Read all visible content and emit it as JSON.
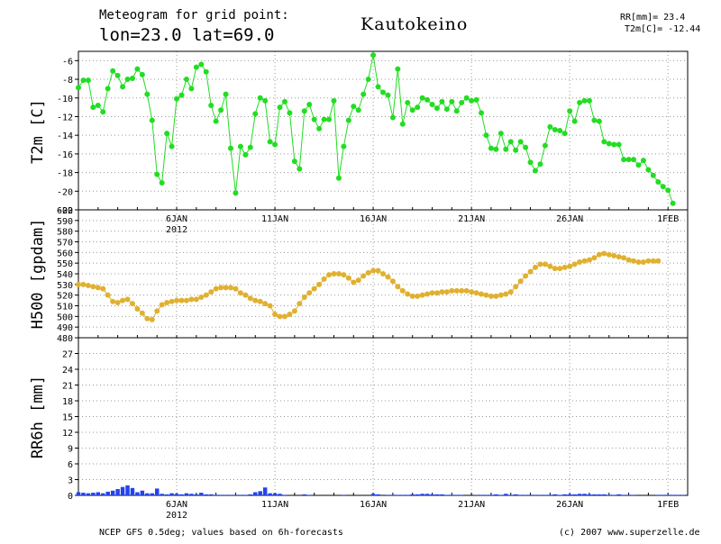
{
  "header": {
    "line1": "Meteogram for grid point:",
    "line2": "lon=23.0 lat=69.0",
    "station": "Kautokeino",
    "rr_label": "RR[mm]= 23.4",
    "t2m_label": "T2m[C]= -12.44"
  },
  "footer": {
    "source": "NCEP GFS 0.5deg; values based on 6h-forecasts",
    "credit": "(c) 2007 www.superzelle.de"
  },
  "colors": {
    "t2m": "#22dd22",
    "h500": "#e0b030",
    "rr": "#2244ee",
    "grid": "#999999",
    "axis": "#000000"
  },
  "x_ticks": [
    "6JAN",
    "11JAN",
    "16JAN",
    "21JAN",
    "26JAN",
    "1FEB"
  ],
  "x_year": "2012",
  "chart_data": [
    {
      "type": "line",
      "title": "",
      "ylabel": "T2m [C]",
      "ylim": [
        -22,
        -5
      ],
      "yticks": [
        "-6",
        "-8",
        "-10",
        "-12",
        "-14",
        "-16",
        "-18",
        "-20",
        "-22"
      ],
      "grid": true,
      "x_unit": "6h steps from start",
      "x_range": [
        0,
        124
      ],
      "series": [
        {
          "values": [
            -8.9,
            -8.1,
            -8.1,
            -11.0,
            -10.8,
            -11.5,
            -9.0,
            -7.1,
            -7.6,
            -8.8,
            -8.0,
            -7.9,
            -6.9,
            -7.5,
            -9.6,
            -12.4,
            -18.2,
            -19.1,
            -13.8,
            -15.2,
            -10.1,
            -9.7,
            -8.0,
            -9.0,
            -6.7,
            -6.4,
            -7.2,
            -10.8,
            -12.5,
            -11.3,
            -9.6,
            -15.4,
            -20.2,
            -15.2,
            -16.1,
            -15.3,
            -11.7,
            -10.0,
            -10.3,
            -14.7,
            -15.0,
            -11.0,
            -10.4,
            -11.6,
            -16.8,
            -17.6,
            -11.4,
            -10.7,
            -12.3,
            -13.3,
            -12.3,
            -12.3,
            -10.3,
            -18.6,
            -15.2,
            -12.4,
            -10.9,
            -11.3,
            -9.6,
            -8.0,
            -5.4,
            -8.8,
            -9.4,
            -9.7,
            -12.1,
            -6.9,
            -12.8,
            -10.5,
            -11.3,
            -11.0,
            -10.0,
            -10.2,
            -10.7,
            -11.1,
            -10.4,
            -11.2,
            -10.4,
            -11.4,
            -10.5,
            -10.0,
            -10.3,
            -10.2,
            -11.6,
            -14.0,
            -15.4,
            -15.5,
            -13.8,
            -15.5,
            -14.7,
            -15.6,
            -14.7,
            -15.3,
            -16.9,
            -17.8,
            -17.1,
            -15.1,
            -13.1,
            -13.4,
            -13.5,
            -13.8,
            -11.4,
            -12.5,
            -10.5,
            -10.3,
            -10.3,
            -12.4,
            -12.5,
            -14.7,
            -14.9,
            -15.0,
            -15.0,
            -16.6,
            -16.6,
            -16.6,
            -17.2,
            -16.7,
            -17.7,
            -18.3,
            -19.0,
            -19.5,
            -19.9,
            -21.3
          ]
        }
      ]
    },
    {
      "type": "line",
      "title": "",
      "ylabel": "H500 [gpdam]",
      "ylim": [
        480,
        600
      ],
      "yticks": [
        "600",
        "590",
        "580",
        "570",
        "560",
        "550",
        "540",
        "530",
        "520",
        "510",
        "500",
        "490",
        "480"
      ],
      "grid": true,
      "x_unit": "6h steps from start",
      "x_range": [
        0,
        124
      ],
      "series": [
        {
          "values": [
            530,
            530,
            529,
            528,
            527,
            526,
            520,
            514,
            513,
            515,
            516,
            512,
            507,
            503,
            498,
            497,
            505,
            511,
            513,
            514,
            515,
            515,
            515,
            516,
            516,
            518,
            520,
            523,
            526,
            527,
            527,
            527,
            526,
            522,
            520,
            517,
            515,
            514,
            512,
            510,
            502,
            500,
            500,
            502,
            505,
            512,
            518,
            522,
            526,
            530,
            535,
            539,
            540,
            540,
            539,
            536,
            532,
            534,
            538,
            541,
            543,
            543,
            540,
            537,
            533,
            528,
            524,
            521,
            519,
            519,
            520,
            521,
            522,
            522,
            523,
            523,
            524,
            524,
            524,
            524,
            523,
            522,
            521,
            520,
            519,
            519,
            520,
            521,
            523,
            528,
            533,
            538,
            542,
            546,
            549,
            549,
            547,
            545,
            545,
            546,
            547,
            549,
            551,
            552,
            553,
            555,
            558,
            559,
            558,
            557,
            556,
            555,
            553,
            552,
            551,
            551,
            552,
            552,
            552
          ]
        }
      ]
    },
    {
      "type": "bar",
      "title": "",
      "ylabel": "RR6h [mm]",
      "ylim": [
        0,
        30
      ],
      "yticks": [
        "27",
        "24",
        "21",
        "18",
        "15",
        "12",
        "9",
        "6",
        "3",
        "0"
      ],
      "grid": true,
      "x_unit": "6h steps from start",
      "x_range": [
        0,
        124
      ],
      "values": [
        0.6,
        0.5,
        0.4,
        0.5,
        0.6,
        0.4,
        0.7,
        0.9,
        1.2,
        1.6,
        1.9,
        1.4,
        0.6,
        0.9,
        0.4,
        0.4,
        1.3,
        0.3,
        0.2,
        0.4,
        0.3,
        0.2,
        0.4,
        0.3,
        0.2,
        0.5,
        0.2,
        0.2,
        0.1,
        0.1,
        0.1,
        0.1,
        0.1,
        0.1,
        0.1,
        0.2,
        0.6,
        0.8,
        1.5,
        0.4,
        0.4,
        0.3,
        0.1,
        0,
        0,
        0,
        0.2,
        0.1,
        0,
        0,
        0,
        0,
        0,
        0,
        0.1,
        0,
        0,
        0,
        0,
        0,
        0.3,
        0.2,
        0,
        0.1,
        0.1,
        0.1,
        0.1,
        0.1,
        0.2,
        0.2,
        0.3,
        0.3,
        0.2,
        0.2,
        0.2,
        0.1,
        0.1,
        0.1,
        0.1,
        0,
        0,
        0.1,
        0.1,
        0.1,
        0.1,
        0.2,
        0.1,
        0.3,
        0.1,
        0.2,
        0.1,
        0.1,
        0.1,
        0.1,
        0.1,
        0.1,
        0.1,
        0.2,
        0.1,
        0.2,
        0.2,
        0.2,
        0.3,
        0.3,
        0.2,
        0.2,
        0.2,
        0.2,
        0.1,
        0.1,
        0.2,
        0.1,
        0.1,
        0.1,
        0,
        0,
        0,
        0,
        0.1,
        0.1,
        0.1,
        0.1,
        0.1,
        0.1,
        0
      ]
    }
  ]
}
